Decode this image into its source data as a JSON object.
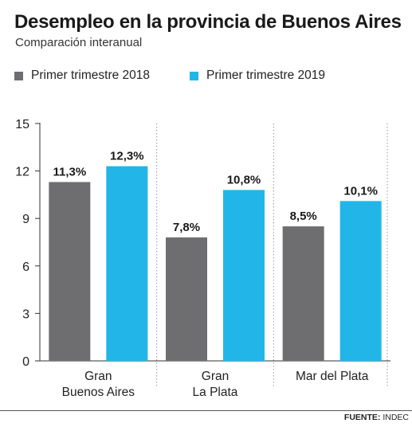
{
  "header": {
    "title": "Desempleo en la provincia de Buenos Aires",
    "subtitle": "Comparación interanual"
  },
  "legend": {
    "items": [
      {
        "label": "Primer trimestre 2018",
        "color": "#6e6e70"
      },
      {
        "label": "Primer trimestre 2019",
        "color": "#22b6e8"
      }
    ]
  },
  "footer": {
    "source_label": "FUENTE:",
    "source_value": "INDEC"
  },
  "chart_data": {
    "type": "bar",
    "title": "Desempleo en la provincia de Buenos Aires",
    "subtitle": "Comparación interanual",
    "categories": [
      "Gran\nBuenos Aires",
      "Gran\nLa Plata",
      "Mar del Plata"
    ],
    "series": [
      {
        "name": "Primer trimestre 2018",
        "color": "#6e6e70",
        "values": [
          11.3,
          7.8,
          8.5
        ],
        "labels": [
          "11,3%",
          "7,8%",
          "8,5%"
        ]
      },
      {
        "name": "Primer trimestre 2019",
        "color": "#22b6e8",
        "values": [
          12.3,
          10.8,
          10.1
        ],
        "labels": [
          "12,3%",
          "10,8%",
          "10,1%"
        ]
      }
    ],
    "ylim": [
      0,
      15
    ],
    "yticks": [
      "0",
      "3",
      "6",
      "9",
      "12",
      "15"
    ],
    "xlabel": "",
    "ylabel": "",
    "grid": false,
    "group_separators": true,
    "legend_position": "top-left"
  }
}
